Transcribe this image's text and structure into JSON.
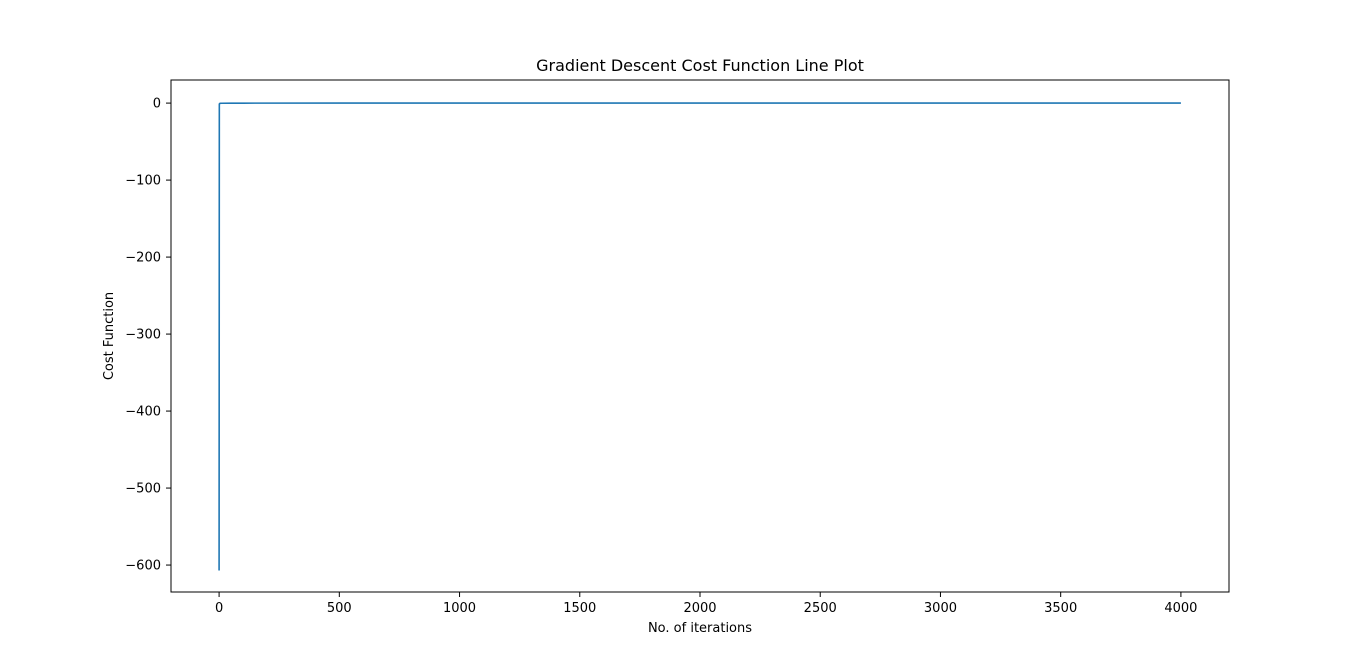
{
  "chart_data": {
    "type": "line",
    "title": "Gradient Descent Cost Function Line Plot",
    "xlabel": "No. of iterations",
    "ylabel": "Cost Function",
    "xlim": [
      -200,
      4200
    ],
    "ylim": [
      -635,
      30
    ],
    "xticks": [
      0,
      500,
      1000,
      1500,
      2000,
      2500,
      3000,
      3500,
      4000
    ],
    "xtick_labels": [
      "0",
      "500",
      "1000",
      "1500",
      "2000",
      "2500",
      "3000",
      "3500",
      "4000"
    ],
    "yticks": [
      0,
      -100,
      -200,
      -300,
      -400,
      -500,
      -600
    ],
    "ytick_labels": [
      "0",
      "−100",
      "−200",
      "−300",
      "−400",
      "−500",
      "−600"
    ],
    "grid": false,
    "legend": "none",
    "series": [
      {
        "color": "#1f77b4",
        "x": [
          0,
          1,
          2,
          5,
          10,
          50,
          100,
          500,
          1000,
          2000,
          3000,
          4000
        ],
        "y": [
          -607,
          -1.5,
          -0.6,
          -0.3,
          -0.2,
          -0.1,
          -0.05,
          0,
          0,
          0,
          0,
          0
        ]
      }
    ]
  }
}
